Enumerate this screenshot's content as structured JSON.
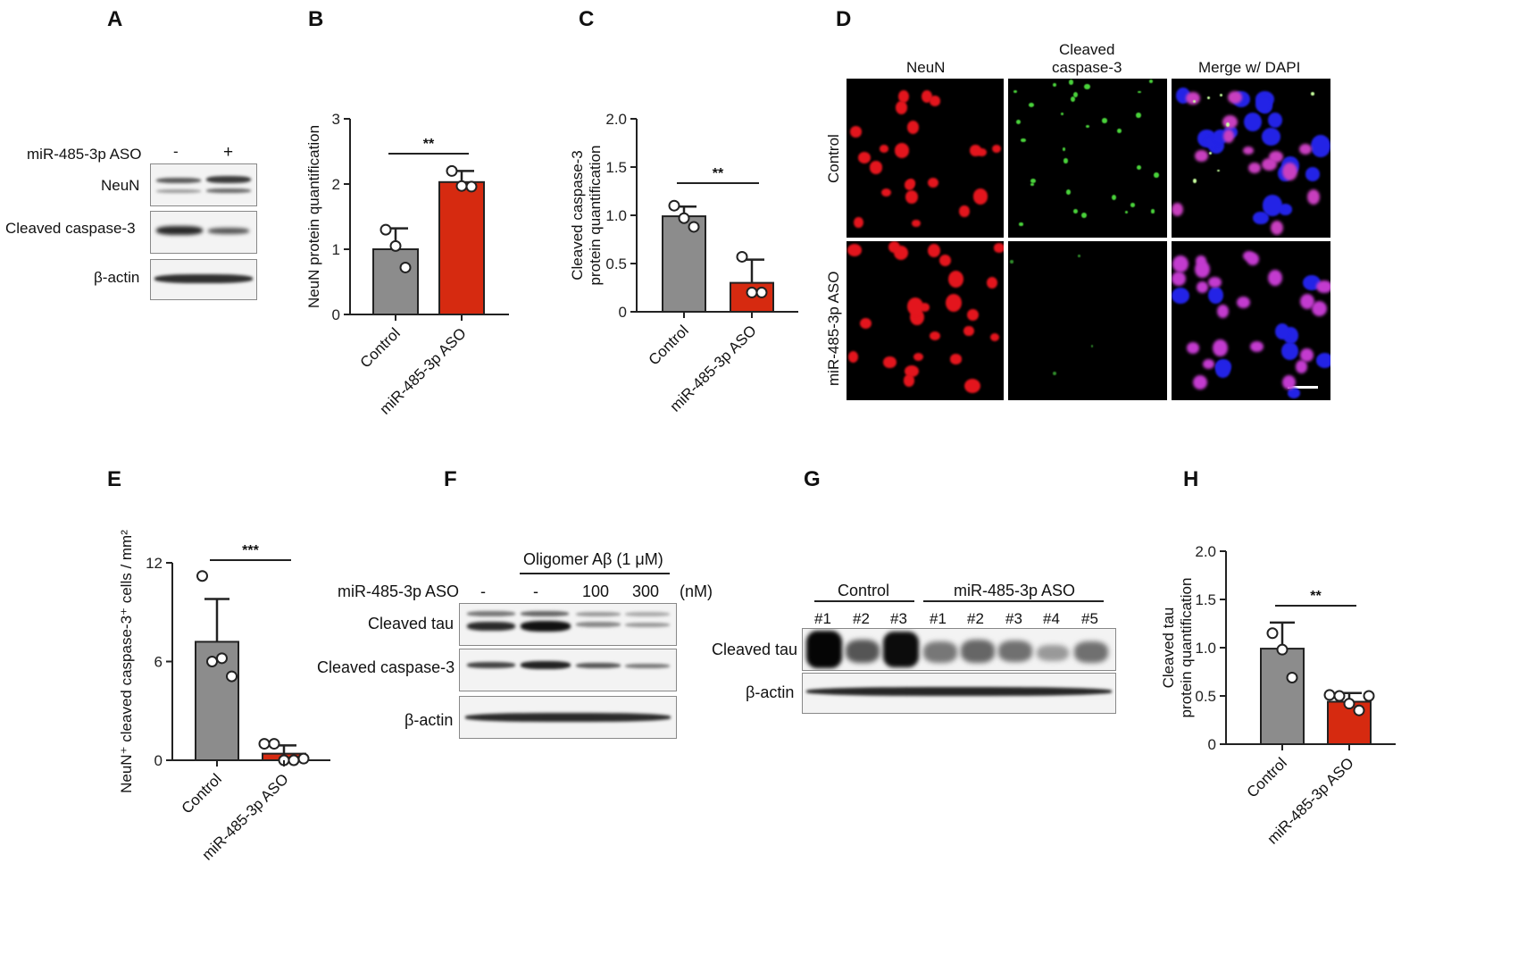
{
  "panels": {
    "A": {
      "letter": "A",
      "treatment_label": "miR-485-3p ASO",
      "lanes": [
        "-",
        "+"
      ],
      "rows": [
        "NeuN",
        "Cleaved caspase-3",
        "β-actin"
      ]
    },
    "B": {
      "letter": "B"
    },
    "C": {
      "letter": "C"
    },
    "D": {
      "letter": "D",
      "columns": [
        "NeuN",
        "Cleaved\ncaspase-3",
        "Merge w/ DAPI"
      ],
      "column_colors": [
        "#e8222a",
        "#3cb83c",
        "#111111"
      ],
      "rows": [
        "Control",
        "miR-485-3p ASO"
      ]
    },
    "E": {
      "letter": "E"
    },
    "F": {
      "letter": "F",
      "header": "Oligomer Aβ (1 μM)",
      "treatment_label": "miR-485-3p ASO",
      "lanes": [
        "-",
        "-",
        "100",
        "300"
      ],
      "unit": "(nM)",
      "rows": [
        "Cleaved tau",
        "Cleaved caspase-3",
        "β-actin"
      ]
    },
    "G": {
      "letter": "G",
      "groups": [
        "Control",
        "miR-485-3p ASO"
      ],
      "lanes": [
        "#1",
        "#2",
        "#3",
        "#1",
        "#2",
        "#3",
        "#4",
        "#5"
      ],
      "rows": [
        "Cleaved tau",
        "β-actin"
      ]
    },
    "H": {
      "letter": "H"
    }
  },
  "chart_data": [
    {
      "panel": "B",
      "type": "bar",
      "categories": [
        "Control",
        "miR-485-3p ASO"
      ],
      "values": [
        1.0,
        2.03
      ],
      "errors": [
        0.32,
        0.17
      ],
      "points": [
        [
          1.3,
          1.05,
          0.72
        ],
        [
          2.2,
          1.97,
          1.96
        ]
      ],
      "colors": [
        "#8c8c8c",
        "#d62a10"
      ],
      "ylabel": "NeuN protein quantification",
      "ylim": [
        0,
        3
      ],
      "yticks": [
        "0",
        "1",
        "2",
        "3"
      ],
      "significance": "**"
    },
    {
      "panel": "C",
      "type": "bar",
      "categories": [
        "Control",
        "miR-485-3p ASO"
      ],
      "values": [
        0.99,
        0.3
      ],
      "errors": [
        0.1,
        0.24
      ],
      "points": [
        [
          1.1,
          0.97,
          0.88
        ],
        [
          0.57,
          0.2,
          0.2
        ]
      ],
      "colors": [
        "#8c8c8c",
        "#d62a10"
      ],
      "ylabel": "Cleaved caspase-3\nprotein quantification",
      "ylim": [
        0,
        2.0
      ],
      "yticks": [
        "0",
        "0.5",
        "1.0",
        "1.5",
        "2.0"
      ],
      "significance": "**"
    },
    {
      "panel": "E",
      "type": "bar",
      "categories": [
        "Control",
        "miR-485-3p ASO"
      ],
      "values": [
        7.2,
        0.4
      ],
      "errors": [
        2.6,
        0.5
      ],
      "points": [
        [
          11.2,
          6.0,
          6.2,
          5.1
        ],
        [
          1.0,
          1.0,
          0.0,
          0.0,
          0.1
        ]
      ],
      "colors": [
        "#8c8c8c",
        "#d62a10"
      ],
      "ylabel": "NeuN⁺ cleaved caspase-3⁺ cells / mm²",
      "ylim": [
        0,
        12
      ],
      "yticks": [
        "0",
        "6",
        "12"
      ],
      "significance": "***"
    },
    {
      "panel": "H",
      "type": "bar",
      "categories": [
        "Control",
        "miR-485-3p ASO"
      ],
      "values": [
        0.99,
        0.44
      ],
      "errors": [
        0.27,
        0.09
      ],
      "points": [
        [
          1.15,
          0.98,
          0.69
        ],
        [
          0.51,
          0.5,
          0.42,
          0.35,
          0.5
        ]
      ],
      "colors": [
        "#8c8c8c",
        "#d62a10"
      ],
      "ylabel": "Cleaved tau\nprotein quantification",
      "ylim": [
        0,
        2.0
      ],
      "yticks": [
        "0",
        "0.5",
        "1.0",
        "1.5",
        "2.0"
      ],
      "significance": "**"
    }
  ]
}
